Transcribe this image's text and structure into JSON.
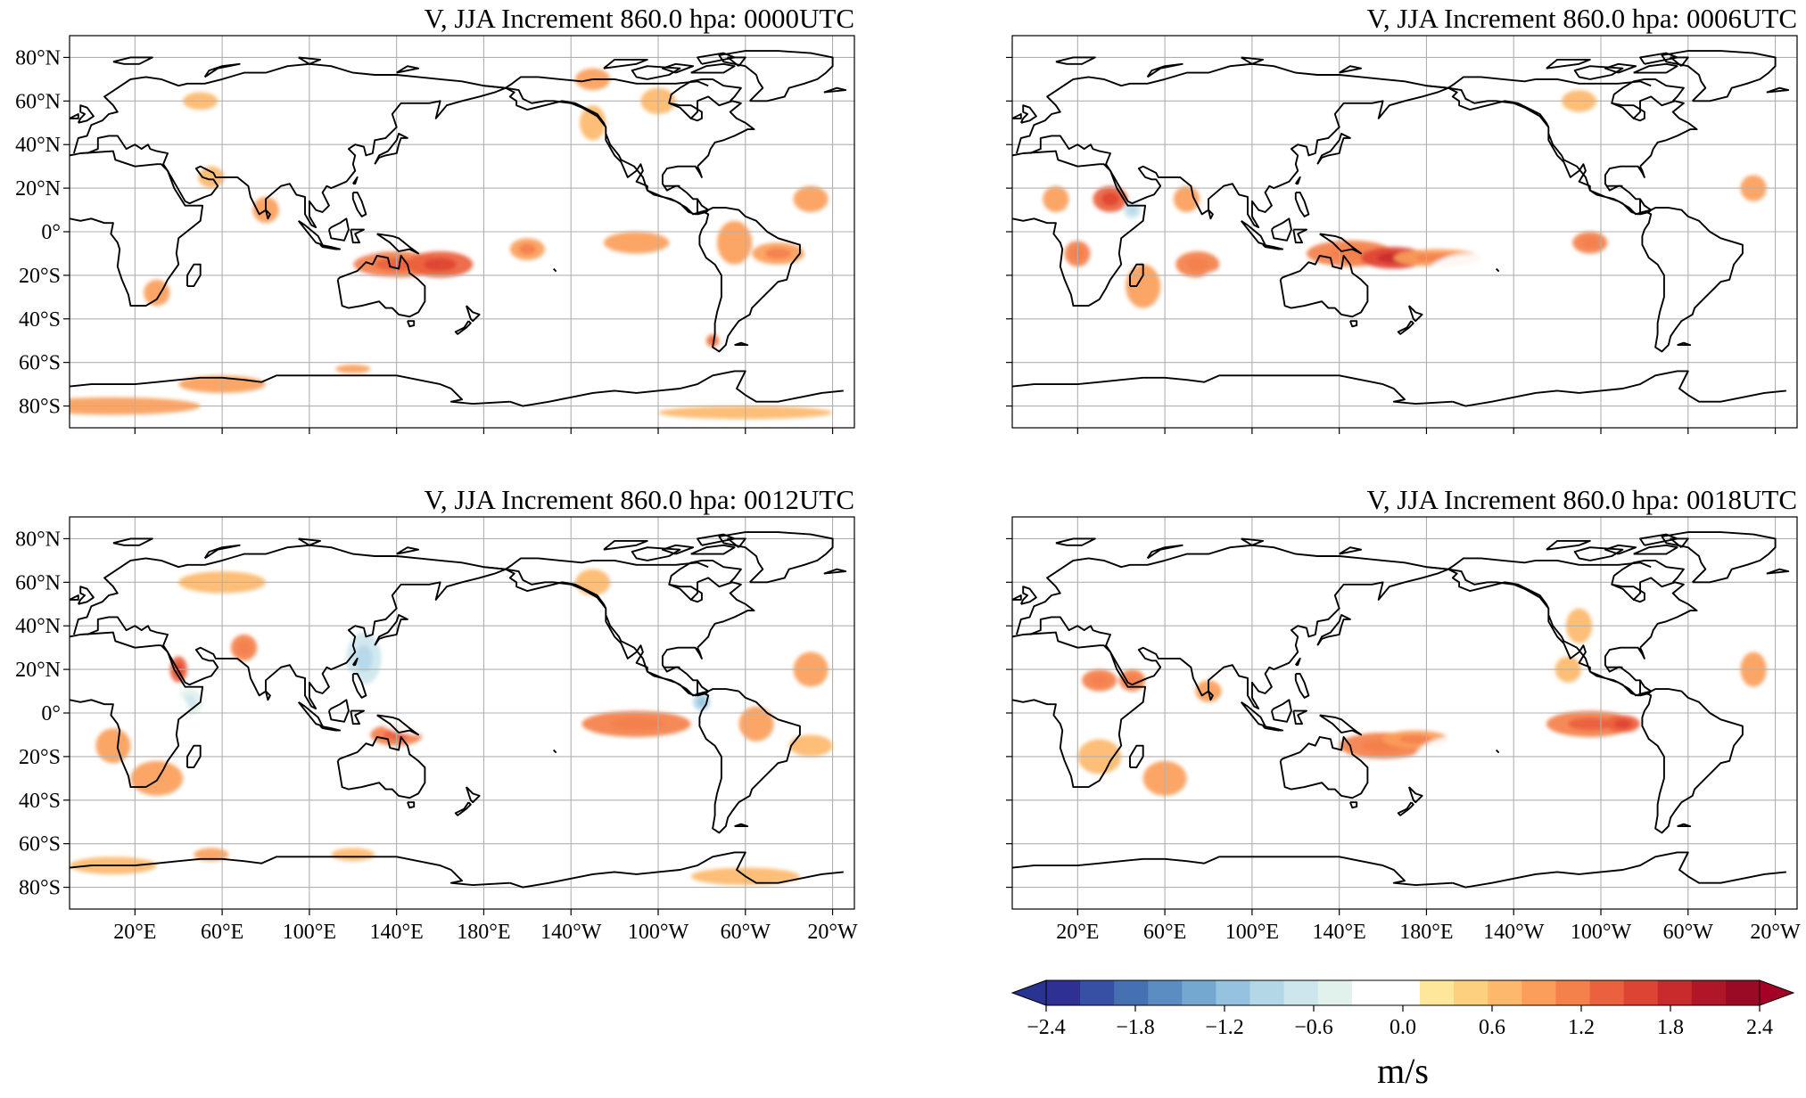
{
  "figure": {
    "panels": [
      {
        "id": "p0000",
        "title": "V, JJA Increment 860.0 hpa:  0000UTC",
        "show_lat_labels": true,
        "show_lon_labels": false,
        "blobs": [
          [
            30,
            10,
            1.0,
            8,
            -0.3
          ],
          [
            40,
            -10,
            5,
            8,
            -0.45
          ],
          [
            30,
            -28,
            6,
            6,
            0.45
          ],
          [
            45,
            -30,
            6,
            5,
            -0.3
          ],
          [
            60,
            -25,
            12,
            12,
            -0.3
          ],
          [
            110,
            -20,
            30,
            15,
            -0.4
          ],
          [
            120,
            5,
            15,
            15,
            -0.5
          ],
          [
            100,
            25,
            18,
            10,
            -0.45
          ],
          [
            140,
            -15,
            20,
            6,
            0.7
          ],
          [
            160,
            -15,
            15,
            6,
            0.9
          ],
          [
            150,
            -35,
            12,
            8,
            -0.3
          ],
          [
            140,
            20,
            40,
            12,
            -0.35
          ],
          [
            200,
            -8,
            8,
            5,
            0.55
          ],
          [
            250,
            -5,
            15,
            5,
            0.5
          ],
          [
            295,
            -5,
            8,
            10,
            0.45
          ],
          [
            315,
            -10,
            12,
            5,
            0.55
          ],
          [
            285,
            -50,
            3,
            3,
            0.7
          ],
          [
            10,
            -80,
            40,
            4,
            0.5
          ],
          [
            60,
            -70,
            20,
            4,
            0.45
          ],
          [
            120,
            -63,
            8,
            2,
            0.5
          ],
          [
            300,
            -83,
            40,
            3,
            0.4
          ],
          [
            55,
            25,
            6,
            5,
            0.4
          ],
          [
            80,
            10,
            6,
            6,
            0.5
          ],
          [
            230,
            70,
            8,
            5,
            0.45
          ],
          [
            230,
            50,
            6,
            8,
            0.4
          ],
          [
            260,
            60,
            8,
            6,
            0.4
          ],
          [
            50,
            60,
            8,
            4,
            0.4
          ],
          [
            270,
            15,
            15,
            8,
            -0.3
          ],
          [
            300,
            30,
            20,
            10,
            -0.3
          ],
          [
            330,
            15,
            8,
            6,
            0.45
          ]
        ]
      },
      {
        "id": "p0006",
        "title": "V, JJA Increment 860.0 hpa:  0006UTC",
        "show_lat_labels": false,
        "show_lon_labels": false,
        "blobs": [
          [
            35,
            15,
            8,
            6,
            0.8
          ],
          [
            45,
            10,
            4,
            4,
            -0.9
          ],
          [
            30,
            -5,
            12,
            10,
            -0.5
          ],
          [
            20,
            -10,
            6,
            6,
            0.6
          ],
          [
            50,
            -25,
            8,
            10,
            0.45
          ],
          [
            75,
            -15,
            10,
            6,
            0.6
          ],
          [
            90,
            -25,
            15,
            8,
            -0.35
          ],
          [
            120,
            -25,
            20,
            10,
            -0.45
          ],
          [
            145,
            -10,
            20,
            6,
            0.6
          ],
          [
            165,
            -12,
            15,
            5,
            1.0
          ],
          [
            185,
            -12,
            20,
            4,
            0.55
          ],
          [
            100,
            10,
            15,
            10,
            -0.4
          ],
          [
            70,
            15,
            6,
            6,
            0.45
          ],
          [
            130,
            25,
            12,
            10,
            -0.35
          ],
          [
            150,
            20,
            40,
            12,
            -0.3
          ],
          [
            200,
            -20,
            20,
            10,
            -0.3
          ],
          [
            255,
            -5,
            8,
            5,
            0.6
          ],
          [
            330,
            20,
            6,
            6,
            0.45
          ],
          [
            10,
            15,
            6,
            6,
            0.45
          ],
          [
            60,
            -60,
            4,
            3,
            -0.3
          ],
          [
            300,
            10,
            20,
            10,
            -0.25
          ],
          [
            250,
            60,
            8,
            5,
            0.4
          ]
        ]
      },
      {
        "id": "p0012",
        "title": "V, JJA Increment 860.0 hpa:  0012UTC",
        "show_lat_labels": true,
        "show_lon_labels": true,
        "blobs": [
          [
            10,
            -15,
            8,
            8,
            0.5
          ],
          [
            30,
            -30,
            12,
            8,
            0.5
          ],
          [
            40,
            20,
            4,
            6,
            0.8
          ],
          [
            45,
            5,
            6,
            6,
            -0.7
          ],
          [
            35,
            0,
            10,
            10,
            -0.4
          ],
          [
            70,
            30,
            6,
            6,
            0.6
          ],
          [
            75,
            -25,
            10,
            10,
            -0.3
          ],
          [
            100,
            -20,
            25,
            15,
            -0.4
          ],
          [
            120,
            -40,
            15,
            6,
            -0.3
          ],
          [
            125,
            25,
            8,
            12,
            -0.9
          ],
          [
            115,
            10,
            10,
            10,
            -0.4
          ],
          [
            140,
            -10,
            12,
            5,
            0.65
          ],
          [
            165,
            30,
            30,
            12,
            -0.35
          ],
          [
            150,
            0,
            20,
            10,
            -0.3
          ],
          [
            250,
            -5,
            25,
            6,
            0.6
          ],
          [
            280,
            5,
            4,
            4,
            -1.0
          ],
          [
            290,
            -20,
            10,
            15,
            -0.45
          ],
          [
            305,
            -5,
            8,
            8,
            0.5
          ],
          [
            330,
            20,
            8,
            8,
            0.5
          ],
          [
            10,
            -70,
            20,
            4,
            0.4
          ],
          [
            55,
            -65,
            8,
            3,
            0.45
          ],
          [
            120,
            -65,
            10,
            3,
            0.4
          ],
          [
            300,
            -75,
            25,
            4,
            0.4
          ],
          [
            230,
            60,
            8,
            6,
            0.4
          ],
          [
            210,
            20,
            20,
            8,
            -0.3
          ],
          [
            60,
            60,
            20,
            5,
            0.4
          ],
          [
            330,
            -15,
            10,
            5,
            0.4
          ]
        ]
      },
      {
        "id": "p0018",
        "title": "V, JJA Increment 860.0 hpa:  0018UTC",
        "show_lat_labels": false,
        "show_lon_labels": true,
        "blobs": [
          [
            30,
            15,
            8,
            5,
            0.6
          ],
          [
            45,
            15,
            6,
            5,
            0.6
          ],
          [
            60,
            -30,
            10,
            8,
            0.5
          ],
          [
            30,
            -20,
            10,
            8,
            0.35
          ],
          [
            10,
            -15,
            8,
            8,
            -0.3
          ],
          [
            110,
            -25,
            20,
            12,
            -0.45
          ],
          [
            130,
            -30,
            15,
            8,
            -0.35
          ],
          [
            160,
            -15,
            20,
            6,
            0.6
          ],
          [
            175,
            -12,
            15,
            4,
            0.55
          ],
          [
            140,
            25,
            20,
            10,
            -0.35
          ],
          [
            170,
            20,
            40,
            12,
            -0.25
          ],
          [
            255,
            -5,
            20,
            6,
            0.65
          ],
          [
            270,
            -5,
            8,
            4,
            0.8
          ],
          [
            290,
            -25,
            10,
            10,
            -0.3
          ],
          [
            330,
            20,
            6,
            8,
            0.5
          ],
          [
            245,
            20,
            6,
            6,
            0.4
          ],
          [
            250,
            40,
            6,
            8,
            0.4
          ],
          [
            80,
            10,
            6,
            5,
            0.5
          ],
          [
            300,
            5,
            15,
            10,
            -0.25
          ],
          [
            200,
            -20,
            25,
            10,
            -0.2
          ]
        ]
      }
    ],
    "lat_ticks": [
      {
        "value": 80,
        "label": "80°N"
      },
      {
        "value": 60,
        "label": "60°N"
      },
      {
        "value": 40,
        "label": "40°N"
      },
      {
        "value": 20,
        "label": "20°N"
      },
      {
        "value": 0,
        "label": "0°"
      },
      {
        "value": -20,
        "label": "20°S"
      },
      {
        "value": -40,
        "label": "40°S"
      },
      {
        "value": -60,
        "label": "60°S"
      },
      {
        "value": -80,
        "label": "80°S"
      }
    ],
    "lon_ticks": [
      {
        "value": 20,
        "label": "20°E"
      },
      {
        "value": 60,
        "label": "60°E"
      },
      {
        "value": 100,
        "label": "100°E"
      },
      {
        "value": 140,
        "label": "140°E"
      },
      {
        "value": 180,
        "label": "180°E"
      },
      {
        "value": 220,
        "label": "140°W"
      },
      {
        "value": 260,
        "label": "100°W"
      },
      {
        "value": 300,
        "label": "60°W"
      },
      {
        "value": 340,
        "label": "20°W"
      }
    ],
    "colorbar": {
      "label": "m/s",
      "min": -2.4,
      "max": 2.4,
      "step": 0.2,
      "ticks": [
        {
          "value": -2.4,
          "label": "−2.4"
        },
        {
          "value": -1.8,
          "label": "−1.8"
        },
        {
          "value": -1.2,
          "label": "−1.2"
        },
        {
          "value": -0.6,
          "label": "−0.6"
        },
        {
          "value": 0.0,
          "label": "0.0"
        },
        {
          "value": 0.6,
          "label": "0.6"
        },
        {
          "value": 1.2,
          "label": "1.2"
        },
        {
          "value": 1.8,
          "label": "1.8"
        },
        {
          "value": 2.4,
          "label": "2.4"
        }
      ],
      "colors": [
        "#2e3192",
        "#3850a3",
        "#4570b2",
        "#5b8cc2",
        "#75a8d0",
        "#95c2de",
        "#b4d7e8",
        "#cde6ee",
        "#e1f1ec",
        "#ffffff",
        "#ffffff",
        "#fee79a",
        "#fdd07f",
        "#fdb86b",
        "#fb9e5a",
        "#f4804b",
        "#eb613e",
        "#de4433",
        "#c92a2c",
        "#b01528",
        "#9b0a25"
      ],
      "under_color": "#283392",
      "over_color": "#a50026"
    },
    "coastline_color": "#000000",
    "grid_color": "#b0b0b0"
  }
}
